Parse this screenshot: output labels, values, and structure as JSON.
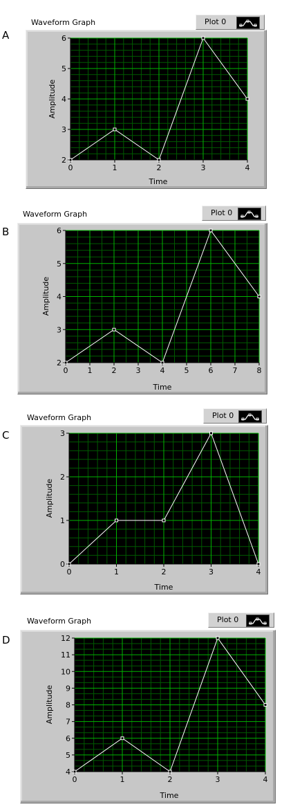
{
  "graphs": [
    {
      "option_letter": "A",
      "title": "Waveform Graph",
      "legend_label": "Plot 0",
      "xlabel": "Time",
      "ylabel": "Amplitude"
    },
    {
      "option_letter": "B",
      "title": "Waveform Graph",
      "legend_label": "Plot 0",
      "xlabel": "Time",
      "ylabel": "Amplitude"
    },
    {
      "option_letter": "C",
      "title": "Waveform Graph",
      "legend_label": "Plot 0",
      "xlabel": "Time",
      "ylabel": "Amplitude"
    },
    {
      "option_letter": "D",
      "title": "Waveform Graph",
      "legend_label": "Plot 0",
      "xlabel": "Time",
      "ylabel": "Amplitude"
    }
  ],
  "colors": {
    "plot_background": "#000000",
    "major_grid": "#00b400",
    "minor_grid": "#005a00",
    "trace": "#ffffff"
  },
  "chart_data": [
    {
      "type": "line",
      "title": "Waveform Graph",
      "xlabel": "Time",
      "ylabel": "Amplitude",
      "series": [
        {
          "name": "Plot 0",
          "x": [
            0,
            1,
            2,
            3,
            4
          ],
          "y": [
            2,
            3,
            2,
            6,
            4
          ]
        }
      ],
      "xlim": [
        0,
        4
      ],
      "ylim": [
        2,
        6
      ],
      "xticks": [
        0,
        1,
        2,
        3,
        4
      ],
      "yticks": [
        2,
        3,
        4,
        5,
        6
      ],
      "grid": true,
      "legend_position": "top-right"
    },
    {
      "type": "line",
      "title": "Waveform Graph",
      "xlabel": "Time",
      "ylabel": "Amplitude",
      "series": [
        {
          "name": "Plot 0",
          "x": [
            0,
            2,
            4,
            6,
            8
          ],
          "y": [
            2,
            3,
            2,
            6,
            4
          ]
        }
      ],
      "xlim": [
        0,
        8
      ],
      "ylim": [
        2,
        6
      ],
      "xticks": [
        0,
        1,
        2,
        3,
        4,
        5,
        6,
        7,
        8
      ],
      "yticks": [
        2,
        3,
        4,
        5,
        6
      ],
      "grid": true,
      "legend_position": "top-right"
    },
    {
      "type": "line",
      "title": "Waveform Graph",
      "xlabel": "Time",
      "ylabel": "Amplitude",
      "series": [
        {
          "name": "Plot 0",
          "x": [
            0,
            1,
            2,
            3,
            4
          ],
          "y": [
            0,
            1,
            1,
            3,
            0
          ]
        }
      ],
      "xlim": [
        0,
        4
      ],
      "ylim": [
        0,
        3
      ],
      "xticks": [
        0,
        1,
        2,
        3,
        4
      ],
      "yticks": [
        0,
        1,
        2,
        3
      ],
      "grid": true,
      "legend_position": "top-right"
    },
    {
      "type": "line",
      "title": "Waveform Graph",
      "xlabel": "Time",
      "ylabel": "Amplitude",
      "series": [
        {
          "name": "Plot 0",
          "x": [
            0,
            1,
            2,
            3,
            4
          ],
          "y": [
            4,
            6,
            4,
            12,
            8
          ]
        }
      ],
      "xlim": [
        0,
        4
      ],
      "ylim": [
        4,
        12
      ],
      "xticks": [
        0,
        1,
        2,
        3,
        4
      ],
      "yticks": [
        4,
        5,
        6,
        7,
        8,
        9,
        10,
        11,
        12
      ],
      "grid": true,
      "legend_position": "top-right"
    }
  ]
}
